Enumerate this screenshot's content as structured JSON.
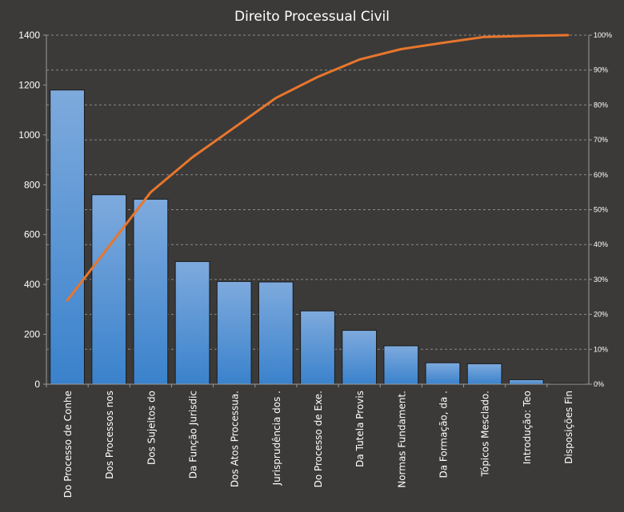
{
  "chart_data": {
    "type": "bar",
    "title": "Direito Processual Civil",
    "categories": [
      "Do Processo de Conhe",
      "Dos Processos nos",
      "Dos Sujeitos do",
      "Da Função Jurisdic",
      "Dos Atos Processua.",
      "Jurisprudência dos .",
      "Do Processo de Exe.",
      "Da Tutela Provis",
      "Normas Fundament.",
      "Da Formação, da .",
      "Tópicos Mesclado.",
      "Introdução: Teo",
      "Disposições Fin"
    ],
    "series": [
      {
        "type": "bar",
        "values": [
          1180,
          760,
          742,
          492,
          412,
          410,
          294,
          216,
          154,
          86,
          82,
          18,
          3
        ]
      },
      {
        "type": "line",
        "axis": "right",
        "values": [
          0.24,
          0.395,
          0.55,
          0.65,
          0.735,
          0.82,
          0.88,
          0.93,
          0.96,
          0.978,
          0.995,
          0.998,
          1.0
        ]
      }
    ],
    "ylim": [
      0,
      1400
    ],
    "yticks": [
      "0",
      "200",
      "400",
      "600",
      "800",
      "1000",
      "1200",
      "1400"
    ],
    "y2lim": [
      0,
      1
    ],
    "y2ticks": [
      "0%",
      "10%",
      "20%",
      "30%",
      "40%",
      "50%",
      "60%",
      "70%",
      "80%",
      "90%",
      "100%"
    ],
    "grid": true,
    "legend": "none",
    "colors": {
      "background": "#3b3a38",
      "bar_top": "#7eaadd",
      "bar_bottom": "#3a82cc",
      "bar_stroke": "#1a1a1a",
      "line": "#e8762d",
      "grid": "#8a8a8a",
      "text": "#ffffff"
    }
  }
}
